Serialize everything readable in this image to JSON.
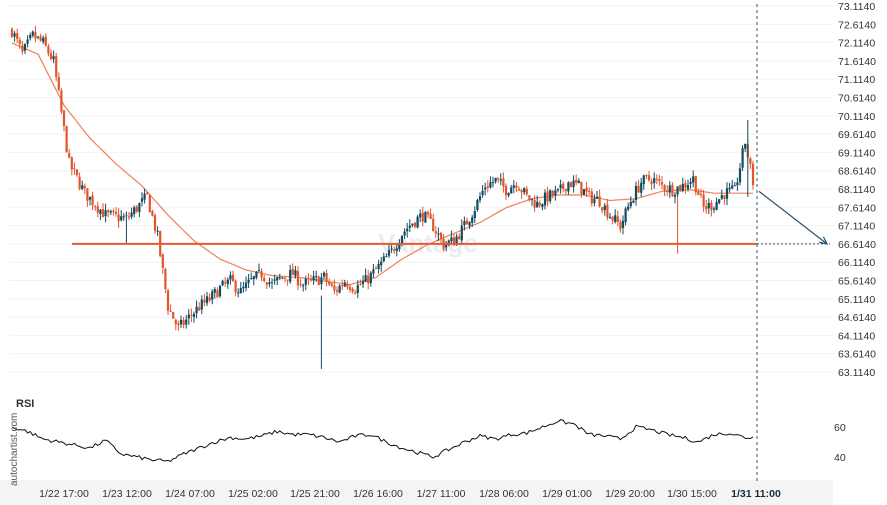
{
  "chart_data": {
    "type": "candlestick",
    "symbol": "",
    "price_axis": {
      "labels": [
        "73.1140",
        "72.6140",
        "72.1140",
        "71.6140",
        "71.1140",
        "70.6140",
        "70.1140",
        "69.6140",
        "69.1140",
        "68.6140",
        "68.1140",
        "67.6140",
        "67.1140",
        "66.6140",
        "66.1140",
        "65.6140",
        "65.1140",
        "64.6140",
        "64.1140",
        "63.6140",
        "63.1140"
      ],
      "ylim": [
        63.114,
        73.114
      ]
    },
    "time_axis": {
      "labels": [
        "1/22 17:00",
        "1/23 12:00",
        "1/24 07:00",
        "1/25 02:00",
        "1/25 21:00",
        "1/26 16:00",
        "1/27 11:00",
        "1/28 06:00",
        "1/29 01:00",
        "1/29 20:00",
        "1/30 15:00",
        "1/31 11:00"
      ],
      "highlighted": "1/31 11:00"
    },
    "support_level": 66.614,
    "forecast": {
      "from": 68.05,
      "to": 66.614
    },
    "price_keypoints": [
      [
        0,
        72.45
      ],
      [
        4,
        71.8
      ],
      [
        8,
        72.3
      ],
      [
        12,
        72.1
      ],
      [
        16,
        71.6
      ],
      [
        22,
        68.8
      ],
      [
        28,
        68.0
      ],
      [
        36,
        67.4
      ],
      [
        44,
        67.3
      ],
      [
        52,
        67.9
      ],
      [
        56,
        66.8
      ],
      [
        60,
        64.9
      ],
      [
        64,
        64.3
      ],
      [
        68,
        64.6
      ],
      [
        72,
        64.9
      ],
      [
        76,
        65.1
      ],
      [
        80,
        65.4
      ],
      [
        84,
        65.6
      ],
      [
        88,
        65.3
      ],
      [
        92,
        65.6
      ],
      [
        96,
        65.8
      ],
      [
        100,
        65.5
      ],
      [
        104,
        65.7
      ],
      [
        108,
        65.8
      ],
      [
        112,
        65.5
      ],
      [
        116,
        65.6
      ],
      [
        120,
        65.7
      ],
      [
        124,
        65.3
      ],
      [
        128,
        65.6
      ],
      [
        132,
        65.4
      ],
      [
        136,
        65.6
      ],
      [
        140,
        65.9
      ],
      [
        146,
        66.4
      ],
      [
        150,
        66.9
      ],
      [
        154,
        67.2
      ],
      [
        158,
        67.4
      ],
      [
        162,
        67.1
      ],
      [
        166,
        66.6
      ],
      [
        170,
        66.7
      ],
      [
        174,
        67.1
      ],
      [
        178,
        67.6
      ],
      [
        182,
        68.2
      ],
      [
        186,
        68.35
      ],
      [
        190,
        68.1
      ],
      [
        194,
        68.3
      ],
      [
        198,
        67.9
      ],
      [
        202,
        67.7
      ],
      [
        206,
        67.9
      ],
      [
        210,
        68.0
      ],
      [
        214,
        68.3
      ],
      [
        218,
        68.2
      ],
      [
        222,
        67.9
      ],
      [
        226,
        67.8
      ],
      [
        230,
        67.4
      ],
      [
        234,
        67.1
      ],
      [
        238,
        67.8
      ],
      [
        242,
        68.3
      ],
      [
        246,
        68.4
      ],
      [
        250,
        68.2
      ],
      [
        254,
        68.1
      ],
      [
        258,
        68.2
      ],
      [
        262,
        68.4
      ],
      [
        266,
        67.6
      ],
      [
        270,
        67.7
      ],
      [
        274,
        68.0
      ],
      [
        278,
        68.05
      ],
      [
        282,
        69.4
      ],
      [
        285,
        68.3
      ]
    ],
    "moving_average_keypoints": [
      [
        0,
        72.1
      ],
      [
        10,
        71.8
      ],
      [
        20,
        70.4
      ],
      [
        30,
        69.5
      ],
      [
        40,
        68.8
      ],
      [
        50,
        68.2
      ],
      [
        60,
        67.4
      ],
      [
        70,
        66.7
      ],
      [
        80,
        66.2
      ],
      [
        90,
        65.9
      ],
      [
        100,
        65.75
      ],
      [
        110,
        65.7
      ],
      [
        120,
        65.6
      ],
      [
        130,
        65.5
      ],
      [
        140,
        65.7
      ],
      [
        150,
        66.2
      ],
      [
        160,
        66.6
      ],
      [
        170,
        66.9
      ],
      [
        180,
        67.2
      ],
      [
        190,
        67.6
      ],
      [
        200,
        67.85
      ],
      [
        210,
        67.95
      ],
      [
        220,
        67.95
      ],
      [
        230,
        67.8
      ],
      [
        240,
        67.85
      ],
      [
        250,
        68.05
      ],
      [
        260,
        68.1
      ],
      [
        270,
        68.0
      ],
      [
        285,
        68.0
      ]
    ],
    "rsi": {
      "label": "RSI",
      "axis_labels": [
        "60",
        "40"
      ],
      "ylim": [
        30,
        70
      ],
      "keypoints": [
        [
          0,
          60
        ],
        [
          6,
          57
        ],
        [
          12,
          52
        ],
        [
          18,
          50
        ],
        [
          24,
          48
        ],
        [
          30,
          46
        ],
        [
          36,
          51
        ],
        [
          42,
          42
        ],
        [
          48,
          40
        ],
        [
          54,
          38
        ],
        [
          60,
          37
        ],
        [
          66,
          42
        ],
        [
          72,
          46
        ],
        [
          78,
          50
        ],
        [
          84,
          53
        ],
        [
          90,
          52
        ],
        [
          96,
          54
        ],
        [
          102,
          57
        ],
        [
          108,
          55
        ],
        [
          114,
          55
        ],
        [
          120,
          53
        ],
        [
          126,
          50
        ],
        [
          132,
          54
        ],
        [
          138,
          55
        ],
        [
          144,
          50
        ],
        [
          150,
          46
        ],
        [
          156,
          43
        ],
        [
          162,
          40
        ],
        [
          168,
          45
        ],
        [
          174,
          50
        ],
        [
          180,
          54
        ],
        [
          186,
          52
        ],
        [
          192,
          55
        ],
        [
          198,
          56
        ],
        [
          204,
          60
        ],
        [
          210,
          64
        ],
        [
          216,
          62
        ],
        [
          222,
          55
        ],
        [
          228,
          54
        ],
        [
          234,
          52
        ],
        [
          240,
          60
        ],
        [
          246,
          58
        ],
        [
          252,
          55
        ],
        [
          258,
          53
        ],
        [
          264,
          50
        ],
        [
          270,
          55
        ],
        [
          276,
          56
        ],
        [
          282,
          53
        ],
        [
          285,
          53
        ]
      ]
    }
  },
  "branding": {
    "side_label": "autochartist.com",
    "watermark": "Vantage"
  },
  "colors": {
    "bull": "#114b5f",
    "bear": "#e3542a",
    "ma": "#f0805a",
    "support": "#e55a2e",
    "forecast": "#29516b",
    "rsi": "#111111",
    "cursor": "#2c5c78"
  }
}
